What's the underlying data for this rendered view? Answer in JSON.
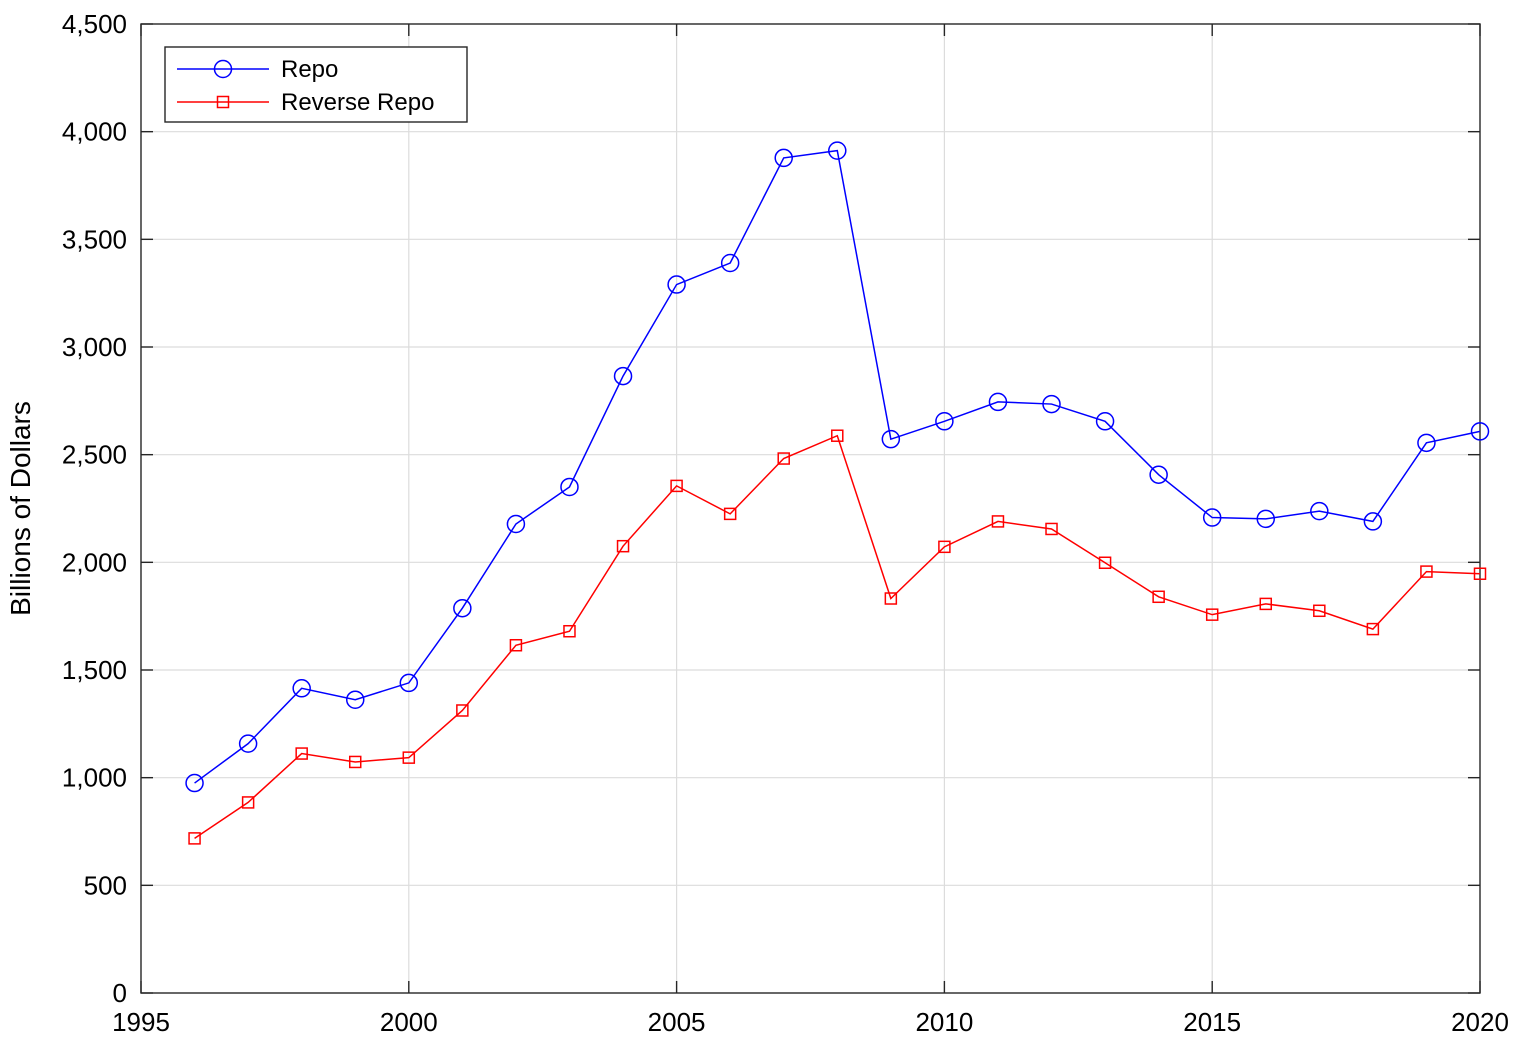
{
  "chart_data": {
    "type": "line",
    "title": "",
    "xlabel": "",
    "ylabel": "Billions of Dollars",
    "xlim": [
      1995,
      2020
    ],
    "ylim": [
      0,
      4500
    ],
    "xticks": [
      1995,
      2000,
      2005,
      2010,
      2015,
      2020
    ],
    "xtick_labels": [
      "1995",
      "2000",
      "2005",
      "2010",
      "2015",
      "2020"
    ],
    "yticks": [
      0,
      500,
      1000,
      1500,
      2000,
      2500,
      3000,
      3500,
      4000,
      4500
    ],
    "ytick_labels": [
      "0",
      "500",
      "1,000",
      "1,500",
      "2,000",
      "2,500",
      "3,000",
      "3,500",
      "4,000",
      "4,500"
    ],
    "grid": true,
    "legend_position": "top-left",
    "x": [
      1996,
      1997,
      1998,
      1999,
      2000,
      2001,
      2002,
      2003,
      2004,
      2005,
      2006,
      2007,
      2008,
      2009,
      2010,
      2011,
      2012,
      2013,
      2014,
      2015,
      2016,
      2017,
      2018,
      2019,
      2020
    ],
    "series": [
      {
        "name": "Repo",
        "color": "#0000ff",
        "marker": "circle",
        "values": [
          975,
          1158,
          1415,
          1362,
          1440,
          1787,
          2178,
          2350,
          2865,
          3290,
          3390,
          3878,
          3912,
          2572,
          2655,
          2745,
          2735,
          2655,
          2407,
          2208,
          2202,
          2238,
          2190,
          2555,
          2608
        ]
      },
      {
        "name": "Reverse Repo",
        "color": "#ff0000",
        "marker": "square",
        "values": [
          718,
          885,
          1112,
          1073,
          1093,
          1312,
          1615,
          1680,
          2075,
          2355,
          2225,
          2482,
          2588,
          1832,
          2072,
          2190,
          2155,
          1998,
          1840,
          1757,
          1807,
          1775,
          1690,
          1957,
          1947
        ]
      }
    ]
  }
}
